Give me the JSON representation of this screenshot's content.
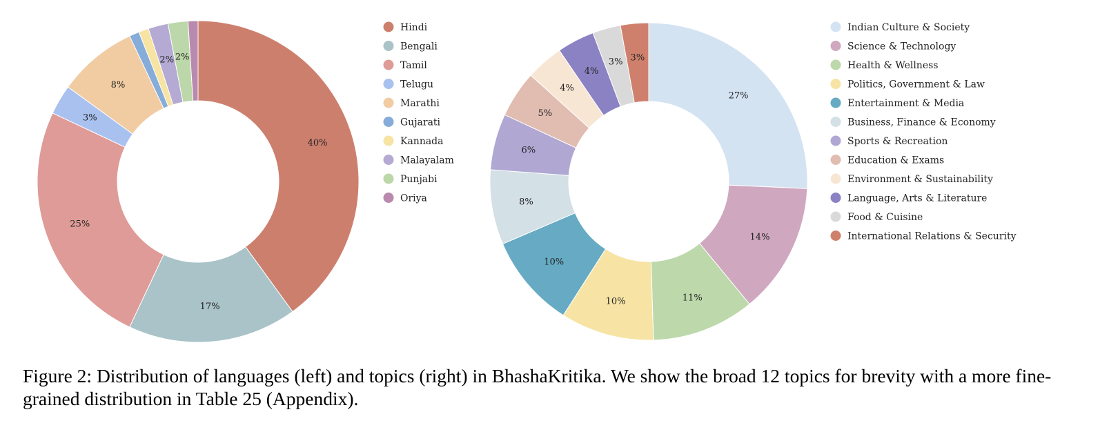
{
  "chart_data": [
    {
      "type": "pie",
      "variant": "donut",
      "legend_placement": "right",
      "categories": [
        "Hindi",
        "Bengali",
        "Tamil",
        "Telugu",
        "Marathi",
        "Gujarati",
        "Kannada",
        "Malayalam",
        "Punjabi",
        "Oriya"
      ],
      "values": [
        40,
        17,
        25,
        3,
        8,
        1,
        1,
        2,
        2,
        1
      ],
      "labels": [
        "40%",
        "17%",
        "25%",
        "3%",
        "8%",
        "",
        "",
        "2%",
        "2%",
        ""
      ],
      "colors": [
        "#cd7f6e",
        "#a9c3c8",
        "#df9b97",
        "#a9c1ef",
        "#f1cca3",
        "#86acd9",
        "#f7e3a2",
        "#b4aad3",
        "#bcd7a9",
        "#b98aae"
      ]
    },
    {
      "type": "pie",
      "variant": "donut",
      "legend_placement": "right",
      "categories": [
        "Indian Culture & Society",
        "Science & Technology",
        "Health & Wellness",
        "Politics, Government & Law",
        "Entertainment & Media",
        "Business, Finance & Economy",
        "Sports & Recreation",
        "Education & Exams",
        "Environment & Sustainability",
        "Language, Arts & Literature",
        "Food & Cuisine",
        "International Relations & Security"
      ],
      "values": [
        27,
        14,
        11,
        10,
        10,
        8,
        6,
        5,
        4,
        4,
        3,
        3
      ],
      "labels": [
        "27%",
        "14%",
        "11%",
        "10%",
        "10%",
        "8%",
        "6%",
        "5%",
        "4%",
        "4%",
        "3%",
        "3%"
      ],
      "colors": [
        "#d4e3f2",
        "#cfa8bf",
        "#bdd8aa",
        "#f7e4a4",
        "#66aac3",
        "#d3e0e6",
        "#b0a8d3",
        "#e1bcb0",
        "#f8e6d5",
        "#8b82c3",
        "#d9d9d9",
        "#cf806d"
      ]
    }
  ],
  "caption": "Figure 2: Distribution of languages (left) and topics (right) in BhashaKritika. We show the broad 12 topics for brevity with a more fine-grained distribution in Table 25 (Appendix)."
}
